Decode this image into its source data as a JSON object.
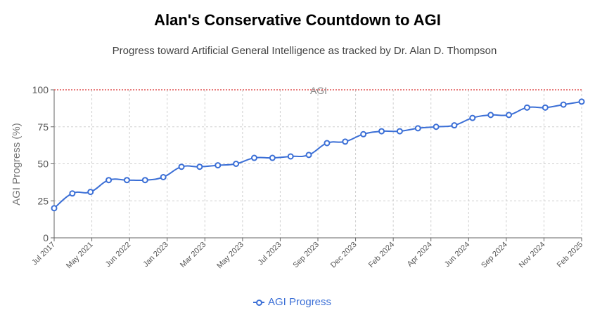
{
  "chart_data": {
    "type": "line",
    "title": "Alan's Conservative Countdown to AGI",
    "subtitle": "Progress toward Artificial General Intelligence as tracked by Dr. Alan D. Thompson",
    "ylabel": "AGI Progress (%)",
    "xlabel": "",
    "ylim": [
      0,
      100
    ],
    "yticks": [
      0,
      25,
      50,
      75,
      100
    ],
    "grid": true,
    "legend_position": "bottom",
    "x_tick_labels": [
      "Jul 2017",
      "May 2021",
      "Jun 2022",
      "Jan 2023",
      "Mar 2023",
      "May 2023",
      "Jul 2023",
      "Sep 2023",
      "Dec 2023",
      "Feb 2024",
      "Apr 2024",
      "Jun 2024",
      "Sep 2024",
      "Nov 2024",
      "Feb 2025"
    ],
    "reference_line": {
      "y": 100,
      "label": "AGI",
      "color": "#e05050"
    },
    "series": [
      {
        "name": "AGI Progress",
        "color": "#3b6fd6",
        "values": [
          20,
          30,
          31,
          39,
          39,
          39,
          41,
          48,
          48,
          49,
          50,
          54,
          54,
          55,
          56,
          64,
          65,
          70,
          72,
          72,
          74,
          75,
          76,
          81,
          83,
          83,
          88,
          88,
          90,
          92
        ]
      }
    ]
  }
}
